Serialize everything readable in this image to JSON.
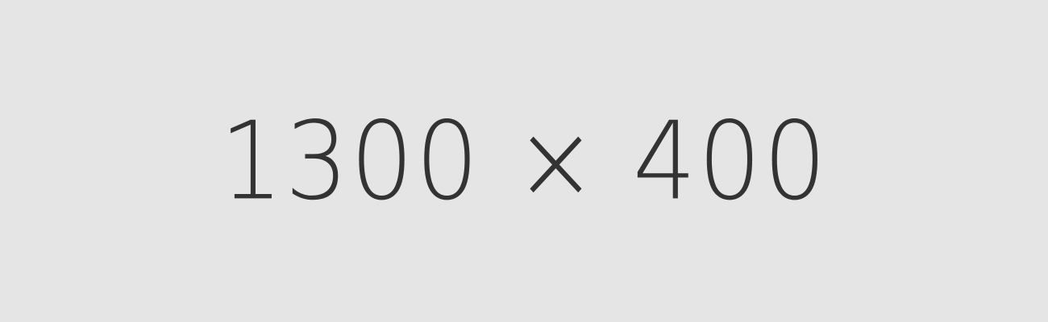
{
  "placeholder": {
    "label": "1300 × 400",
    "background_color": "#e5e5e5",
    "text_color": "#333333"
  }
}
